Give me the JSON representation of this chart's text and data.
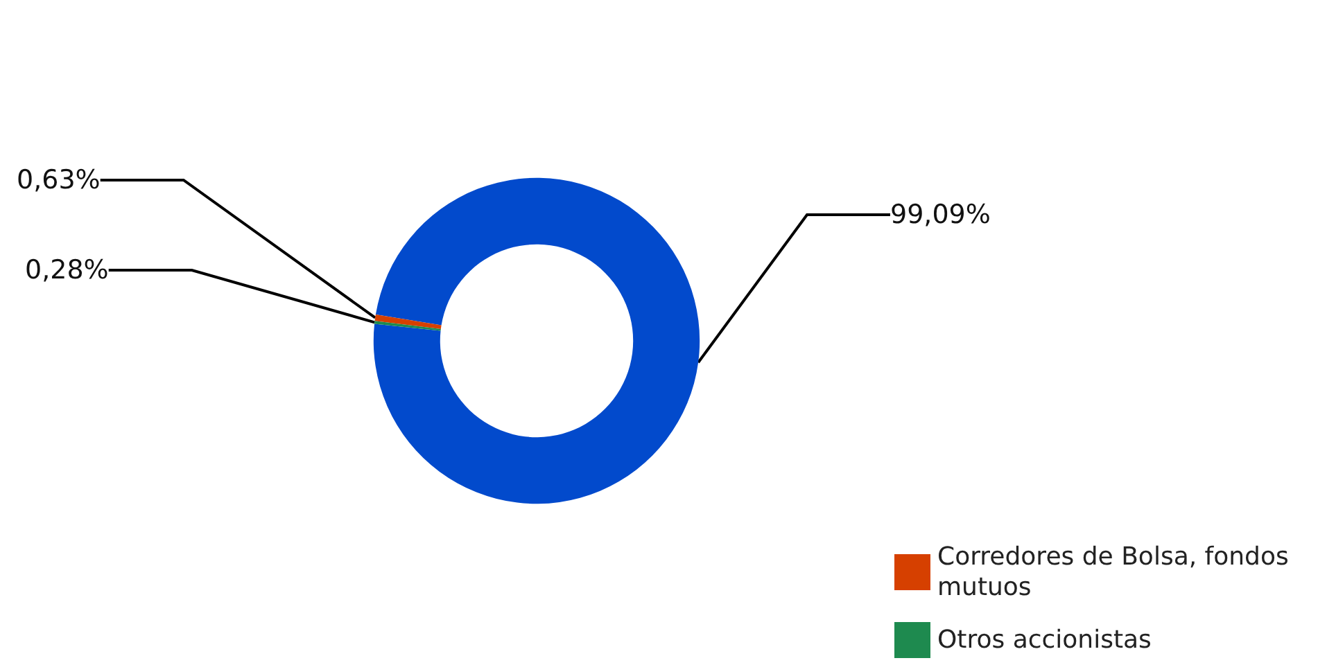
{
  "chart_data": {
    "type": "donut",
    "categories": [
      null,
      "Corredores de Bolsa, fondos mutuos",
      "Otros accionistas"
    ],
    "values": [
      99.09,
      0.63,
      0.28
    ],
    "colors": [
      "#024acc",
      "#d64000",
      "#1e8a4f"
    ],
    "value_labels": [
      "99,09%",
      "0,63%",
      "0,28%"
    ],
    "legend": "bottom right"
  }
}
